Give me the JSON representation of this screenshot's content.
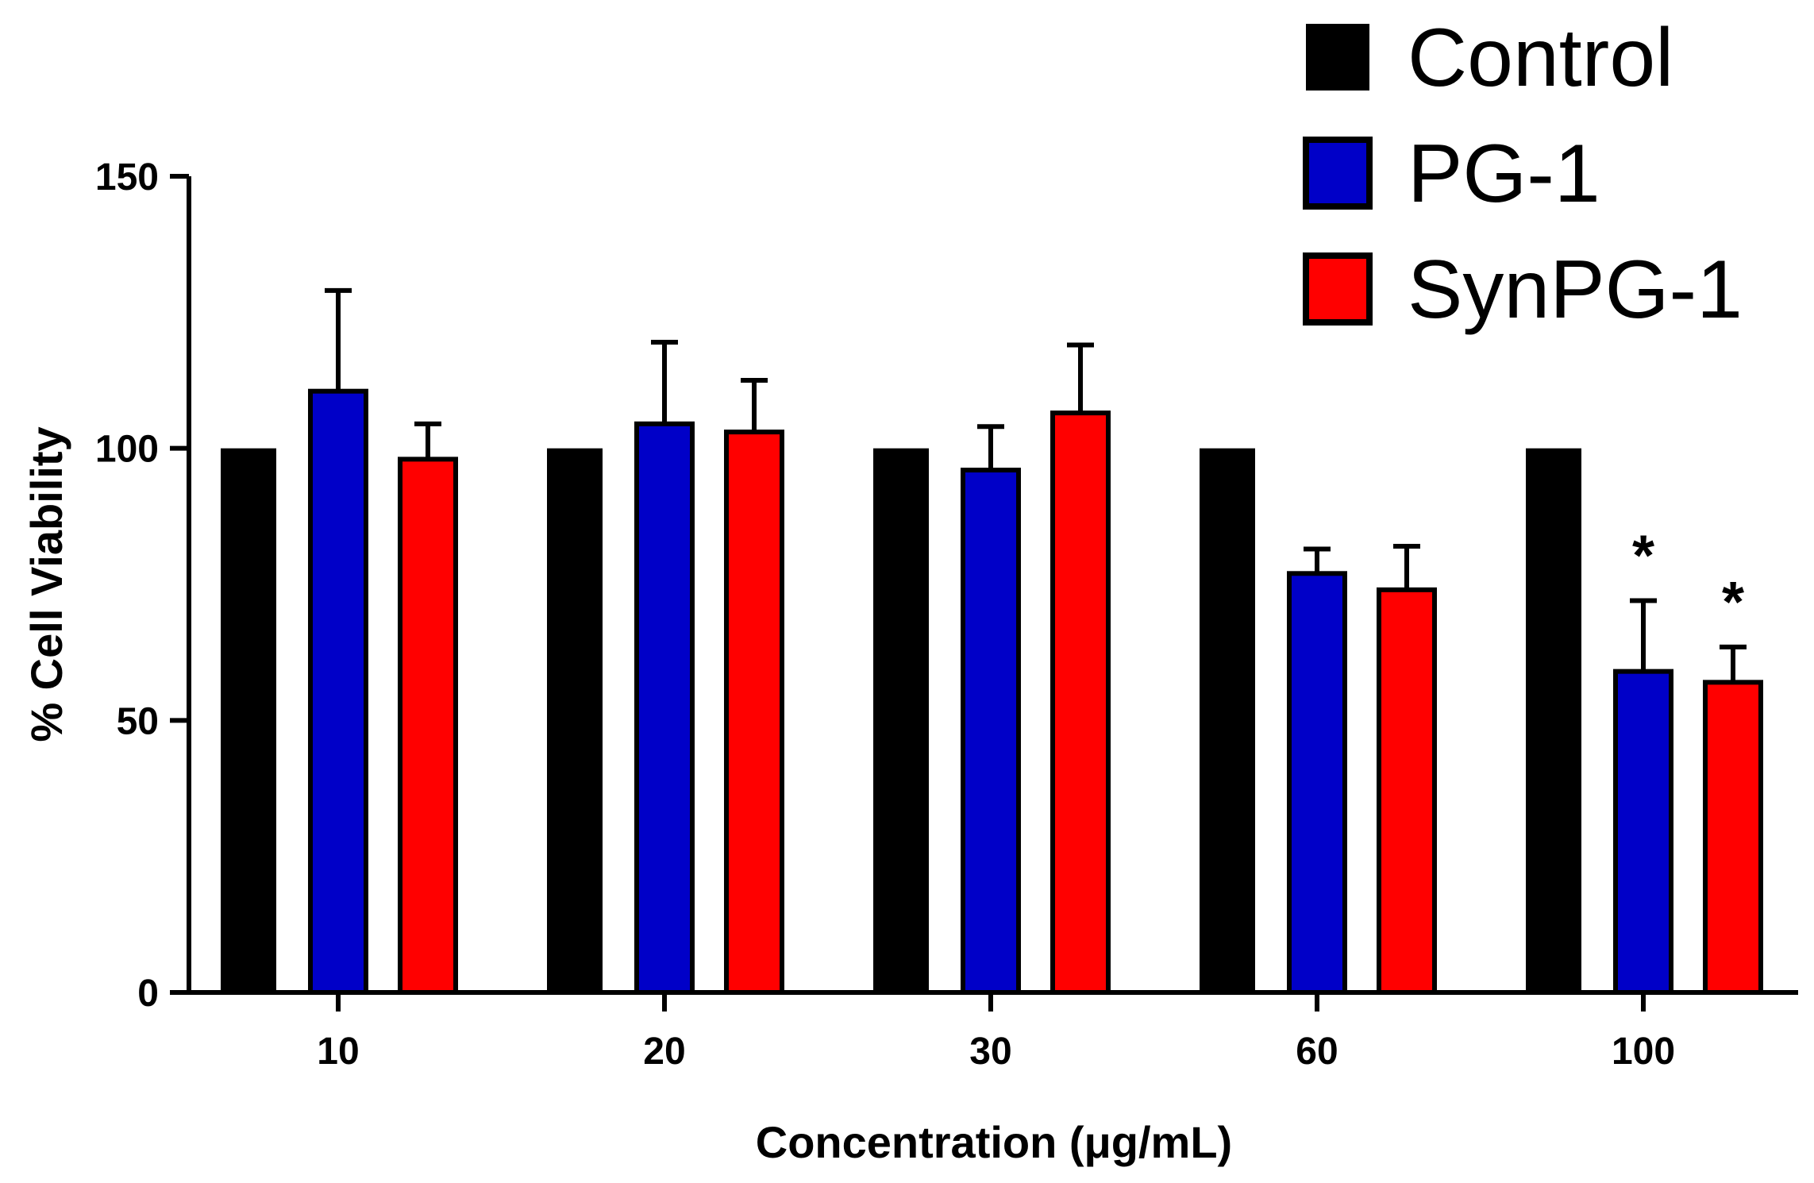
{
  "chart_data": {
    "type": "bar",
    "title": "",
    "xlabel": "Concentration (μg/mL)",
    "ylabel": "% Cell Viability",
    "ylim": [
      0,
      150
    ],
    "yticks": [
      0,
      50,
      100,
      150
    ],
    "categories": [
      "10",
      "20",
      "30",
      "60",
      "100"
    ],
    "series": [
      {
        "name": "Control",
        "color": "#000000",
        "values": [
          100,
          100,
          100,
          100,
          100
        ],
        "errors": [
          0,
          0,
          0,
          0,
          0
        ]
      },
      {
        "name": "PG-1",
        "color": "#0000c8",
        "values": [
          110.5,
          104.5,
          96,
          77,
          59
        ],
        "errors": [
          18.5,
          15,
          8,
          4.5,
          13
        ]
      },
      {
        "name": "SynPG-1",
        "color": "#ff0000",
        "values": [
          98,
          103,
          106.5,
          74,
          57
        ],
        "errors": [
          6.5,
          9.5,
          12.5,
          8,
          6.5
        ]
      }
    ],
    "annotations": [
      {
        "category": "100",
        "series": "PG-1",
        "text": "*"
      },
      {
        "category": "100",
        "series": "SynPG-1",
        "text": "*"
      }
    ],
    "legend_position": "top-right",
    "grid": false
  }
}
